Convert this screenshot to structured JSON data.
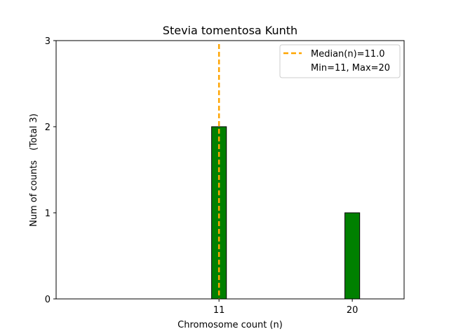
{
  "chart_data": {
    "type": "bar",
    "title": "Stevia tomentosa Kunth",
    "xlabel": "Chromosome count (n)",
    "ylabel": "Num of counts",
    "ylabel_total": "(Total 3)",
    "bars": [
      {
        "x": 11,
        "value": 2
      },
      {
        "x": 20,
        "value": 1
      }
    ],
    "xticks": [
      11,
      20
    ],
    "yticks": [
      0,
      1,
      2,
      3
    ],
    "xlim": [
      0,
      23.5
    ],
    "ylim": [
      0,
      3
    ],
    "bar_width": 1,
    "bar_color": "#008000",
    "median": {
      "value": 11.0,
      "label": "Median(n)=11.0",
      "color": "#FFA500"
    },
    "legend": {
      "placement": "top-right",
      "entries": [
        "Median(n)=11.0",
        "Min=11, Max=20"
      ]
    },
    "grid": false
  }
}
